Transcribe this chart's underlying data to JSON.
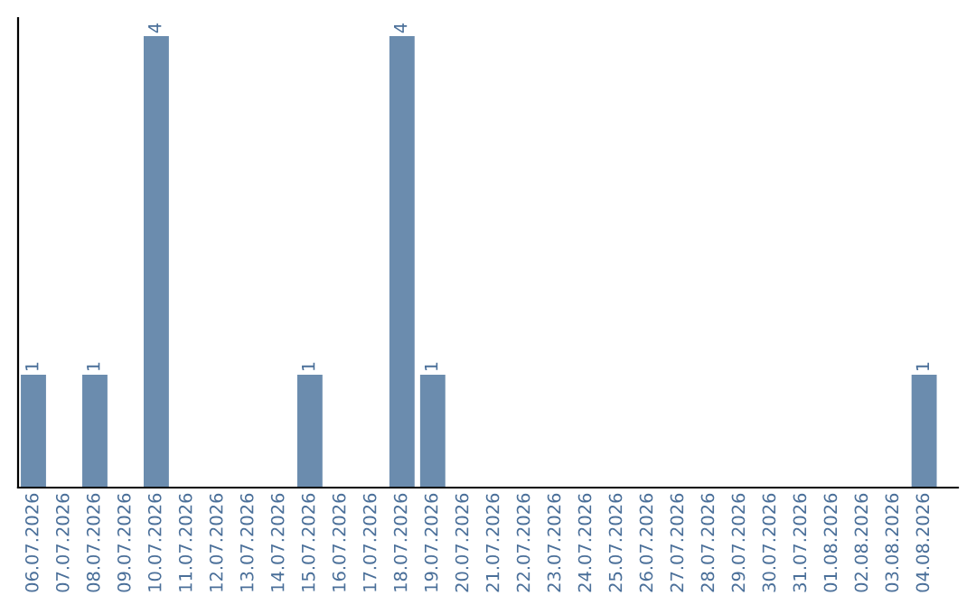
{
  "chart_data": {
    "type": "bar",
    "categories": [
      "06.07.2026",
      "07.07.2026",
      "08.07.2026",
      "09.07.2026",
      "10.07.2026",
      "11.07.2026",
      "12.07.2026",
      "13.07.2026",
      "14.07.2026",
      "15.07.2026",
      "16.07.2026",
      "17.07.2026",
      "18.07.2026",
      "19.07.2026",
      "20.07.2026",
      "21.07.2026",
      "22.07.2026",
      "23.07.2026",
      "24.07.2026",
      "25.07.2026",
      "26.07.2026",
      "27.07.2026",
      "28.07.2026",
      "29.07.2026",
      "30.07.2026",
      "31.07.2026",
      "01.08.2026",
      "02.08.2026",
      "03.08.2026",
      "04.08.2026"
    ],
    "values": [
      1,
      0,
      1,
      0,
      4,
      0,
      0,
      0,
      0,
      1,
      0,
      0,
      4,
      1,
      0,
      0,
      0,
      0,
      0,
      0,
      0,
      0,
      0,
      0,
      0,
      0,
      0,
      0,
      0,
      1
    ],
    "value_labels": [
      "1",
      null,
      "1",
      null,
      "4",
      null,
      null,
      null,
      null,
      "1",
      null,
      null,
      "4",
      "1",
      null,
      null,
      null,
      null,
      null,
      null,
      null,
      null,
      null,
      null,
      null,
      null,
      null,
      null,
      null,
      "1"
    ],
    "color": "#6b8cae",
    "tick_labels": "x",
    "grid": false,
    "legend": false
  }
}
